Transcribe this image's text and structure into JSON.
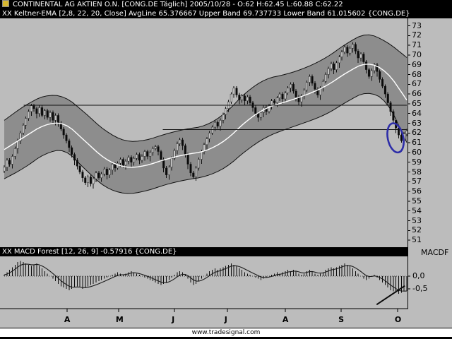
{
  "header": {
    "line1": "CONTINENTAL AG AKTIEN O.N. [CONG.DE  Täglich] 2005/10/28 - O:62 H:62.45 L:60.88 C:62.22",
    "line2": "XX Keltner-EMA [2,8, 22, 20, Close] AvgLine 65.376667 Upper Band 69.737733 Lower Band 61.015602 {CONG.DE}"
  },
  "macd_header": {
    "label": "XX MACD Forest [12, 26, 9] -0.57916 {CONG.DE}",
    "axis_label": "MACDF"
  },
  "footer": {
    "url": "www.tradesignal.com"
  },
  "price_axis": {
    "labels": [
      73,
      72,
      71,
      70,
      69,
      68,
      67,
      66,
      65,
      64,
      63,
      62,
      61,
      60,
      59,
      58,
      57,
      56,
      55,
      54,
      53,
      52,
      51
    ]
  },
  "time_axis": {
    "labels": [
      {
        "label": "A",
        "t": 0.156
      },
      {
        "label": "M",
        "t": 0.284
      },
      {
        "label": "J",
        "t": 0.423
      },
      {
        "label": "J",
        "t": 0.554
      },
      {
        "label": "A",
        "t": 0.698
      },
      {
        "label": "S",
        "t": 0.837
      },
      {
        "label": "O",
        "t": 0.977
      }
    ]
  },
  "colors": {
    "background": "#bcbcbc",
    "channel_fill": "#8d8d8d",
    "line": "#111111",
    "ema_line": "#ffffff",
    "header_bg": "#000000",
    "header_fg": "#ffffff",
    "annotation_blue": "#2d2da8"
  },
  "chart_data": [
    {
      "type": "candlestick",
      "name": "price-panel",
      "symbol": "CONG.DE",
      "period": "Täglich",
      "date": "2005/10/28",
      "last_ohlc": {
        "open": 62,
        "high": 62.45,
        "low": 60.88,
        "close": 62.22
      },
      "ylim": [
        50.5,
        73.6
      ],
      "closes": [
        58.5,
        59.2,
        58.8,
        59.6,
        60.4,
        61.2,
        62.0,
        62.8,
        63.5,
        64.2,
        64.8,
        64.5,
        64.0,
        64.6,
        63.8,
        64.3,
        63.6,
        64.1,
        63.3,
        63.8,
        63.0,
        62.4,
        61.8,
        61.2,
        60.5,
        59.8,
        59.2,
        58.6,
        58.0,
        57.4,
        56.9,
        57.5,
        56.8,
        57.3,
        57.9,
        57.4,
        57.8,
        58.3,
        57.7,
        58.2,
        58.8,
        58.4,
        58.9,
        59.3,
        58.7,
        59.1,
        59.5,
        59.0,
        59.4,
        59.8,
        59.2,
        59.6,
        60.1,
        59.6,
        60.0,
        60.4,
        60.6,
        60.1,
        59.3,
        58.4,
        57.7,
        58.5,
        59.4,
        60.2,
        60.9,
        61.3,
        60.7,
        59.8,
        58.8,
        57.9,
        57.5,
        58.4,
        59.3,
        60.1,
        60.8,
        61.4,
        62.0,
        62.6,
        63.1,
        62.7,
        63.3,
        63.9,
        64.5,
        65.2,
        66.0,
        66.6,
        65.9,
        65.4,
        65.8,
        65.3,
        65.7,
        65.1,
        64.6,
        64.0,
        63.6,
        64.1,
        64.6,
        64.2,
        64.8,
        65.3,
        65.1,
        65.6,
        66.0,
        65.5,
        66.1,
        66.6,
        67.0,
        66.3,
        65.7,
        65.2,
        65.8,
        66.4,
        67.2,
        67.8,
        67.1,
        66.5,
        65.9,
        66.6,
        67.3,
        68.0,
        68.6,
        69.1,
        68.5,
        69.2,
        69.8,
        70.3,
        70.8,
        70.2,
        70.7,
        71.1,
        70.4,
        69.7,
        70.1,
        69.3,
        68.5,
        67.8,
        68.4,
        69.0,
        68.3,
        67.5,
        66.8,
        66.0,
        65.1,
        64.2,
        63.3,
        62.5,
        61.8,
        61.2,
        61.9,
        62.22
      ],
      "keltner": {
        "avg_last": 65.376667,
        "upper_last": 69.737733,
        "lower_last": 61.015602,
        "t": [
          0,
          0.05,
          0.1,
          0.15,
          0.2,
          0.25,
          0.3,
          0.35,
          0.4,
          0.45,
          0.5,
          0.55,
          0.6,
          0.65,
          0.7,
          0.75,
          0.8,
          0.85,
          0.9,
          0.95,
          1
        ],
        "upper": [
          63.3,
          64.8,
          65.9,
          65.8,
          64.1,
          62.2,
          61.1,
          61.2,
          61.9,
          62.4,
          62.7,
          64.0,
          66.2,
          67.6,
          68.0,
          68.7,
          69.7,
          71.2,
          72.3,
          71.4,
          69.74
        ],
        "avg": [
          60.3,
          61.6,
          62.9,
          63.1,
          61.2,
          59.3,
          58.4,
          58.6,
          59.3,
          59.8,
          60.1,
          61.2,
          63.2,
          64.6,
          65.2,
          65.9,
          66.8,
          68.2,
          69.3,
          68.4,
          65.38
        ],
        "lower": [
          57.3,
          58.4,
          59.9,
          60.4,
          58.3,
          56.4,
          55.7,
          56.0,
          56.7,
          57.2,
          57.5,
          58.4,
          60.2,
          61.6,
          62.4,
          63.1,
          63.9,
          65.2,
          66.3,
          65.4,
          61.02
        ]
      },
      "annotations": {
        "hlines": [
          {
            "price": 64.85,
            "from": 0.048,
            "to": 1
          },
          {
            "price": 62.35,
            "from": 0.394,
            "to": 1
          }
        ],
        "ellipse": {
          "t": 0.972,
          "price": 61.5,
          "rx": 11,
          "ry": 21,
          "rotate": -12
        }
      }
    },
    {
      "type": "bar",
      "name": "macd-panel",
      "last": -0.57916,
      "y_ticks": [
        {
          "label": "0,0",
          "value": 0
        },
        {
          "label": "-0,5",
          "value": -0.5
        }
      ],
      "values": [
        0.05,
        0.15,
        0.25,
        0.35,
        0.45,
        0.55,
        0.6,
        0.55,
        0.5,
        0.45,
        0.4,
        0.45,
        0.5,
        0.4,
        0.3,
        0.2,
        0.1,
        0.0,
        -0.1,
        -0.2,
        -0.3,
        -0.4,
        -0.45,
        -0.5,
        -0.55,
        -0.5,
        -0.45,
        -0.4,
        -0.45,
        -0.5,
        -0.45,
        -0.4,
        -0.35,
        -0.3,
        -0.25,
        -0.2,
        -0.15,
        -0.1,
        -0.05,
        0.0,
        0.05,
        0.1,
        0.15,
        0.1,
        0.05,
        0.1,
        0.15,
        0.2,
        0.15,
        0.1,
        0.05,
        0.0,
        -0.05,
        -0.1,
        -0.15,
        -0.2,
        -0.25,
        -0.3,
        -0.35,
        -0.3,
        -0.25,
        -0.15,
        -0.05,
        0.05,
        0.15,
        0.2,
        0.15,
        0.05,
        -0.1,
        -0.25,
        -0.35,
        -0.3,
        -0.2,
        -0.1,
        0.0,
        0.1,
        0.2,
        0.25,
        0.3,
        0.25,
        0.3,
        0.35,
        0.4,
        0.45,
        0.5,
        0.45,
        0.4,
        0.3,
        0.25,
        0.15,
        0.1,
        0.05,
        0.0,
        -0.05,
        -0.1,
        -0.15,
        -0.1,
        -0.05,
        0.0,
        0.05,
        0.1,
        0.15,
        0.1,
        0.15,
        0.2,
        0.25,
        0.2,
        0.25,
        0.2,
        0.1,
        0.05,
        0.1,
        0.2,
        0.25,
        0.2,
        0.1,
        0.05,
        0.1,
        0.15,
        0.25,
        0.3,
        0.35,
        0.3,
        0.35,
        0.4,
        0.45,
        0.5,
        0.45,
        0.4,
        0.3,
        0.2,
        0.1,
        0.0,
        -0.1,
        -0.15,
        -0.1,
        0.0,
        0.05,
        -0.05,
        -0.15,
        -0.25,
        -0.35,
        -0.45,
        -0.55,
        -0.6,
        -0.65,
        -0.7,
        -0.65,
        -0.6,
        -0.58
      ],
      "trendline": {
        "from": {
          "t": 0.925,
          "v": -1.12
        },
        "to": {
          "t": 0.995,
          "v": -0.38
        }
      }
    }
  ]
}
